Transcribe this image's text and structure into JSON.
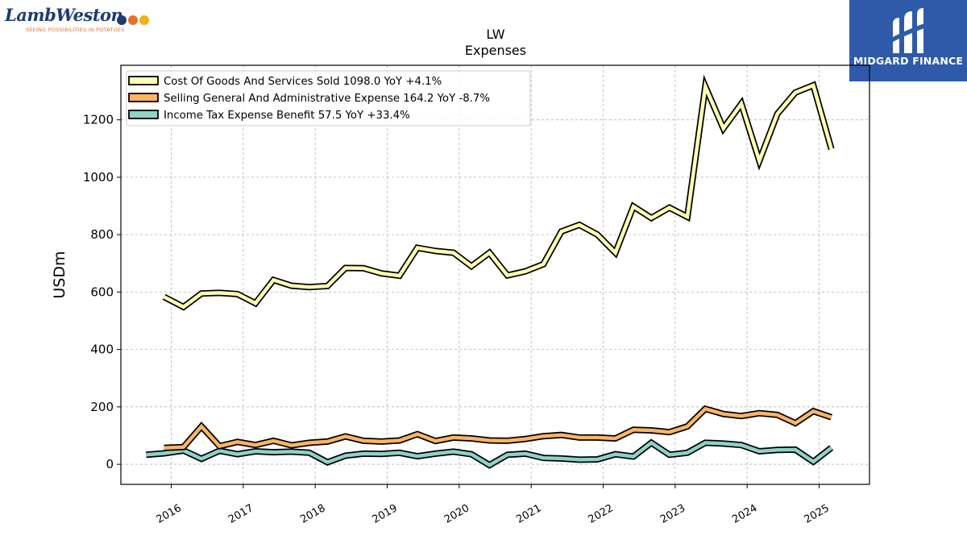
{
  "branding": {
    "left_logo_name": "LambWeston",
    "left_logo_tagline": "SEEING POSSIBILITIES IN POTATOES",
    "right_logo_name": "MIDGARD FINANCE"
  },
  "colors": {
    "series": [
      "#ffffb3",
      "#fdb462",
      "#8dd3c7"
    ],
    "outline": "#000000",
    "grid": "#b0b0b0",
    "brand_blue": "#2f5aaa",
    "brand_navy": "#1f3b73",
    "brand_orange": "#e8702a"
  },
  "chart_data": {
    "type": "line",
    "title": "LW",
    "subtitle": "Expenses",
    "xlabel": "",
    "ylabel": "USDm",
    "ylim": [
      -70,
      1390
    ],
    "xlim": [
      2015.3,
      2025.7
    ],
    "yticks": [
      0,
      200,
      400,
      600,
      800,
      1000,
      1200
    ],
    "xticks": [
      2016,
      2017,
      2018,
      2019,
      2020,
      2021,
      2022,
      2023,
      2024,
      2025
    ],
    "xtick_labels": [
      "2016",
      "2017",
      "2018",
      "2019",
      "2020",
      "2021",
      "2022",
      "2023",
      "2024",
      "2025"
    ],
    "grid": true,
    "legend_position": "top-left",
    "series": [
      {
        "name": "Cost Of Goods And Services Sold  1098.0 YoY +4.1%",
        "x": [
          2015.9,
          2016.17,
          2016.42,
          2016.67,
          2016.92,
          2017.17,
          2017.42,
          2017.67,
          2017.92,
          2018.17,
          2018.42,
          2018.67,
          2018.92,
          2019.17,
          2019.42,
          2019.67,
          2019.92,
          2020.17,
          2020.42,
          2020.67,
          2020.92,
          2021.17,
          2021.42,
          2021.67,
          2021.92,
          2022.17,
          2022.42,
          2022.67,
          2022.92,
          2023.17,
          2023.42,
          2023.67,
          2023.92,
          2024.17,
          2024.42,
          2024.67,
          2024.92,
          2025.17
        ],
        "values": [
          583,
          548,
          595,
          597,
          593,
          561,
          642,
          622,
          617,
          621,
          684,
          683,
          665,
          657,
          754,
          743,
          737,
          690,
          737,
          658,
          672,
          697,
          811,
          834,
          800,
          737,
          898,
          858,
          894,
          862,
          1316,
          1170,
          1256,
          1057,
          1221,
          1295,
          1320,
          1098
        ]
      },
      {
        "name": "Selling General And Administrative Expense  164.2 YoY -8.7%",
        "x": [
          2015.9,
          2016.17,
          2016.42,
          2016.67,
          2016.92,
          2017.17,
          2017.42,
          2017.67,
          2017.92,
          2018.17,
          2018.42,
          2018.67,
          2018.92,
          2019.17,
          2019.42,
          2019.67,
          2019.92,
          2020.17,
          2020.42,
          2020.67,
          2020.92,
          2021.17,
          2021.42,
          2021.67,
          2021.92,
          2022.17,
          2022.42,
          2022.67,
          2022.92,
          2023.17,
          2023.42,
          2023.67,
          2023.92,
          2024.17,
          2024.42,
          2024.67,
          2024.92,
          2025.17
        ],
        "values": [
          57,
          60,
          132,
          63,
          78,
          67,
          82,
          66,
          75,
          79,
          97,
          82,
          79,
          83,
          105,
          81,
          93,
          90,
          83,
          82,
          88,
          98,
          102,
          93,
          93,
          90,
          120,
          118,
          112,
          132,
          193,
          175,
          168,
          178,
          172,
          143,
          185,
          164
        ]
      },
      {
        "name": "Income Tax Expense Benefit  57.5 YoY +33.4%",
        "x": [
          2015.65,
          2015.9,
          2016.17,
          2016.42,
          2016.67,
          2016.92,
          2017.17,
          2017.42,
          2017.67,
          2017.92,
          2018.17,
          2018.42,
          2018.67,
          2018.92,
          2019.17,
          2019.42,
          2019.67,
          2019.92,
          2020.17,
          2020.42,
          2020.67,
          2020.92,
          2021.17,
          2021.42,
          2021.67,
          2021.92,
          2022.17,
          2022.42,
          2022.67,
          2022.92,
          2023.17,
          2023.42,
          2023.67,
          2023.92,
          2024.17,
          2024.42,
          2024.67,
          2024.92,
          2025.17
        ],
        "values": [
          33,
          38,
          48,
          19,
          47,
          35,
          45,
          42,
          44,
          40,
          7,
          30,
          37,
          36,
          40,
          28,
          37,
          44,
          35,
          -3,
          33,
          37,
          22,
          20,
          16,
          17,
          35,
          27,
          75,
          33,
          40,
          75,
          72,
          67,
          45,
          50,
          51,
          9,
          57.5
        ]
      }
    ]
  }
}
